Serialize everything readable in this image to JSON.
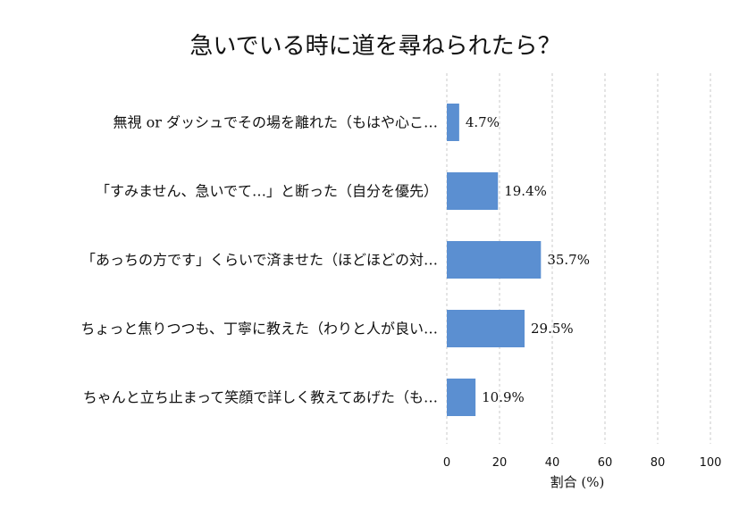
{
  "chart_data": {
    "type": "bar",
    "orientation": "horizontal",
    "title": "急いでいる時に道を尋ねられたら？",
    "xlabel": "割合 (%)",
    "ylabel": "",
    "categories": [
      "無視 or ダッシュでその場を離れた（もはや心こ…",
      "「すみません、急いでて…」と断った（自分を優先）",
      "「あっちの方です」くらいで済ませた（ほどほどの対…",
      "ちょっと焦りつつも、丁寧に教えた（わりと人が良い…",
      "ちゃんと立ち止まって笑顔で詳しく教えてあげた（も…"
    ],
    "values": [
      4.7,
      19.4,
      35.7,
      29.5,
      10.9
    ],
    "value_labels": [
      "4.7%",
      "19.4%",
      "35.7%",
      "29.5%",
      "10.9%"
    ],
    "xlim": [
      0,
      100
    ],
    "xticks": [
      0,
      20,
      40,
      60,
      80,
      100
    ],
    "grid": "vertical-dashed",
    "legend": "none",
    "bar_color": "#5b8fd1"
  }
}
